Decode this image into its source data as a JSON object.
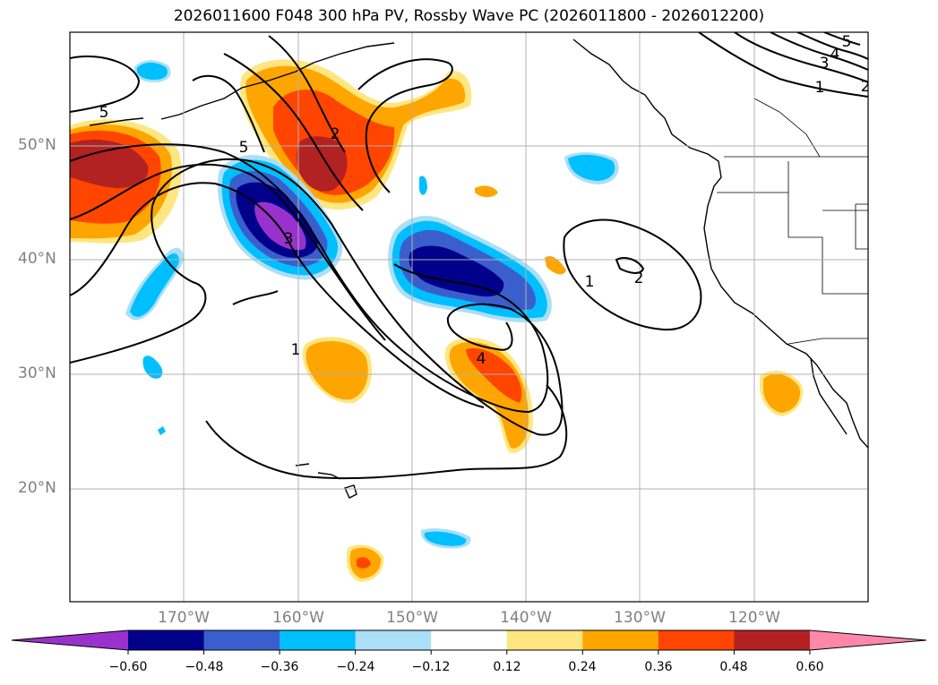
{
  "title": "2026011600 F048 300 hPa PV, Rossby Wave PC (2026011800 - 2026012200)",
  "latitude_labels": [
    "50°N",
    "40°N",
    "30°N",
    "20°N"
  ],
  "longitude_labels": [
    "170°W",
    "160°W",
    "150°W",
    "140°W",
    "130°W",
    "120°W"
  ],
  "contour_labels": [
    "5",
    "5",
    "2",
    "3",
    "1",
    "4",
    "1",
    "2",
    "1",
    "3",
    "4",
    "5",
    "2"
  ],
  "colorbar": {
    "ticks": [
      "−0.60",
      "−0.48",
      "−0.36",
      "−0.24",
      "−0.12",
      "0.12",
      "0.24",
      "0.36",
      "0.48",
      "0.60"
    ],
    "colors": [
      "#9932cc",
      "#00008b",
      "#3a5fcd",
      "#00bfff",
      "#aadff8",
      "#ffffff",
      "#ffe680",
      "#ffa500",
      "#ff4500",
      "#b22222",
      "#ff88aa"
    ]
  }
}
